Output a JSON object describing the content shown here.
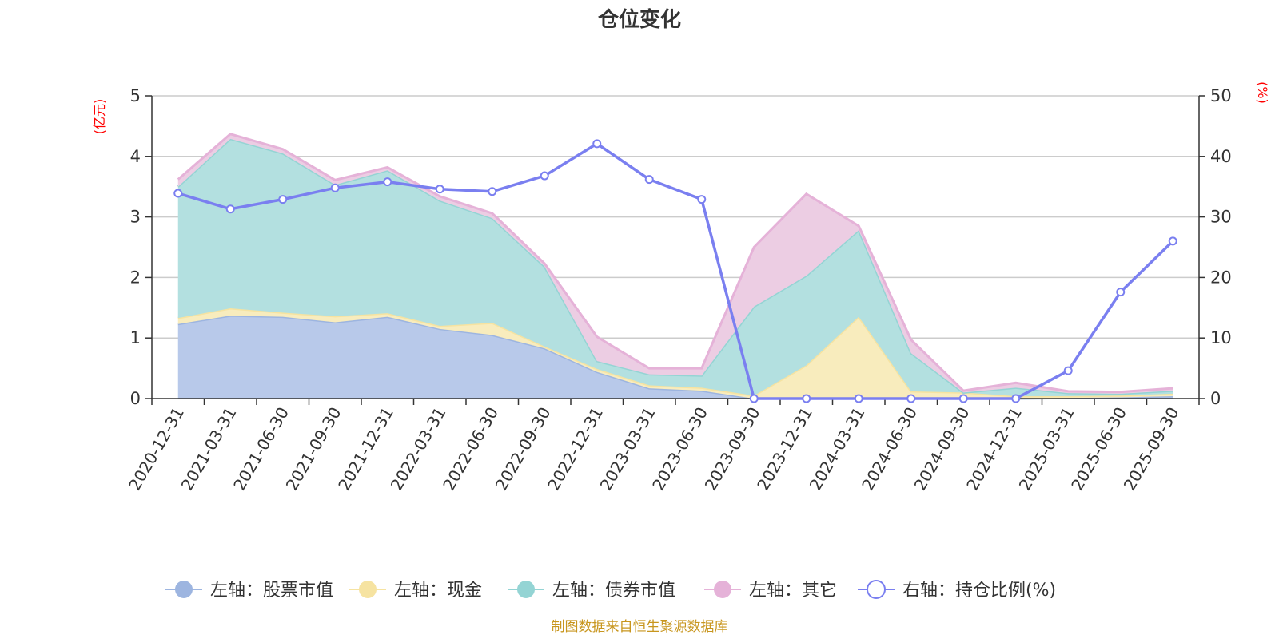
{
  "chart_data": {
    "type": "area",
    "title": "仓位变化",
    "left_axis_unit": "(亿元)",
    "right_axis_unit": "(%)",
    "left_ylim": [
      0,
      5
    ],
    "left_ticks": [
      "0",
      "1",
      "2",
      "3",
      "4",
      "5"
    ],
    "right_ylim": [
      0,
      50
    ],
    "right_ticks": [
      "0",
      "10",
      "20",
      "30",
      "40",
      "50"
    ],
    "categories": [
      "2020-12-31",
      "2021-03-31",
      "2021-06-30",
      "2021-09-30",
      "2021-12-31",
      "2022-03-31",
      "2022-06-30",
      "2022-09-30",
      "2022-12-31",
      "2023-03-31",
      "2023-06-30",
      "2023-09-30",
      "2023-12-31",
      "2024-03-31",
      "2024-06-30",
      "2024-09-30",
      "2024-12-31",
      "2025-03-31",
      "2025-06-30",
      "2025-09-30"
    ],
    "stacked_series": [
      {
        "name": "左轴：股票市值",
        "color": "#9db5e0",
        "fill": "#b8c9ea",
        "values": [
          1.23,
          1.37,
          1.35,
          1.26,
          1.35,
          1.15,
          1.05,
          0.83,
          0.44,
          0.17,
          0.13,
          0.0,
          0.0,
          0.0,
          0.0,
          0.0,
          0.0,
          0.01,
          0.02,
          0.04
        ]
      },
      {
        "name": "左轴：现金",
        "color": "#f6e3a1",
        "fill": "#f8ecbd",
        "values": [
          0.1,
          0.12,
          0.07,
          0.1,
          0.06,
          0.05,
          0.2,
          0.03,
          0.05,
          0.05,
          0.05,
          0.05,
          0.55,
          1.35,
          0.12,
          0.1,
          0.04,
          0.03,
          0.03,
          0.04
        ]
      },
      {
        "name": "左轴：债券市值",
        "color": "#94d4d4",
        "fill": "#b3e0e0",
        "values": [
          2.17,
          2.8,
          2.63,
          2.17,
          2.36,
          2.07,
          1.73,
          1.32,
          0.13,
          0.18,
          0.2,
          1.47,
          1.48,
          1.43,
          0.63,
          0.0,
          0.14,
          0.05,
          0.03,
          0.05
        ]
      },
      {
        "name": "左轴：其它",
        "color": "#e5b2d8",
        "fill": "#eccde3",
        "values": [
          0.12,
          0.08,
          0.07,
          0.08,
          0.05,
          0.07,
          0.08,
          0.05,
          0.4,
          0.1,
          0.12,
          0.98,
          1.35,
          0.07,
          0.22,
          0.03,
          0.08,
          0.03,
          0.03,
          0.04
        ]
      }
    ],
    "line_series": {
      "name": "右轴：持仓比例(%)",
      "color": "#7a7ff0",
      "values": [
        33.9,
        31.3,
        32.9,
        34.8,
        35.8,
        34.6,
        34.2,
        36.8,
        42.1,
        36.2,
        32.9,
        0.0,
        0.0,
        0.0,
        0.0,
        0.0,
        0.0,
        4.6,
        17.6,
        26.0
      ]
    },
    "source": "制图数据来自恒生聚源数据库"
  }
}
